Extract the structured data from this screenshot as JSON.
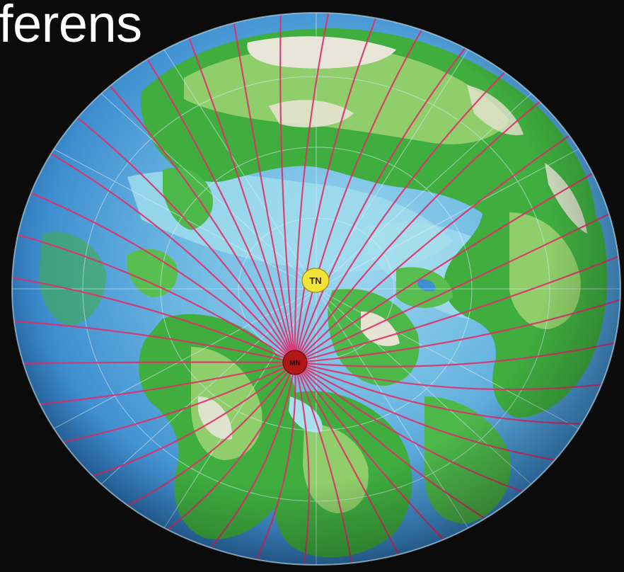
{
  "title": "ferens",
  "true_north_label": "TN",
  "magnetic_pole_label": "MN",
  "colors": {
    "background": "#0b0b0b",
    "ocean": "#3f8fd0",
    "ocean_shallow": "#8fd0ea",
    "land": "#3fae3f",
    "land_light": "#8fce6a",
    "highland": "#e8e6d8",
    "field_lines": "#e0306a",
    "true_north_marker": "#f2e23a",
    "magnetic_pole_marker": "#b01818",
    "title": "#ffffff"
  }
}
